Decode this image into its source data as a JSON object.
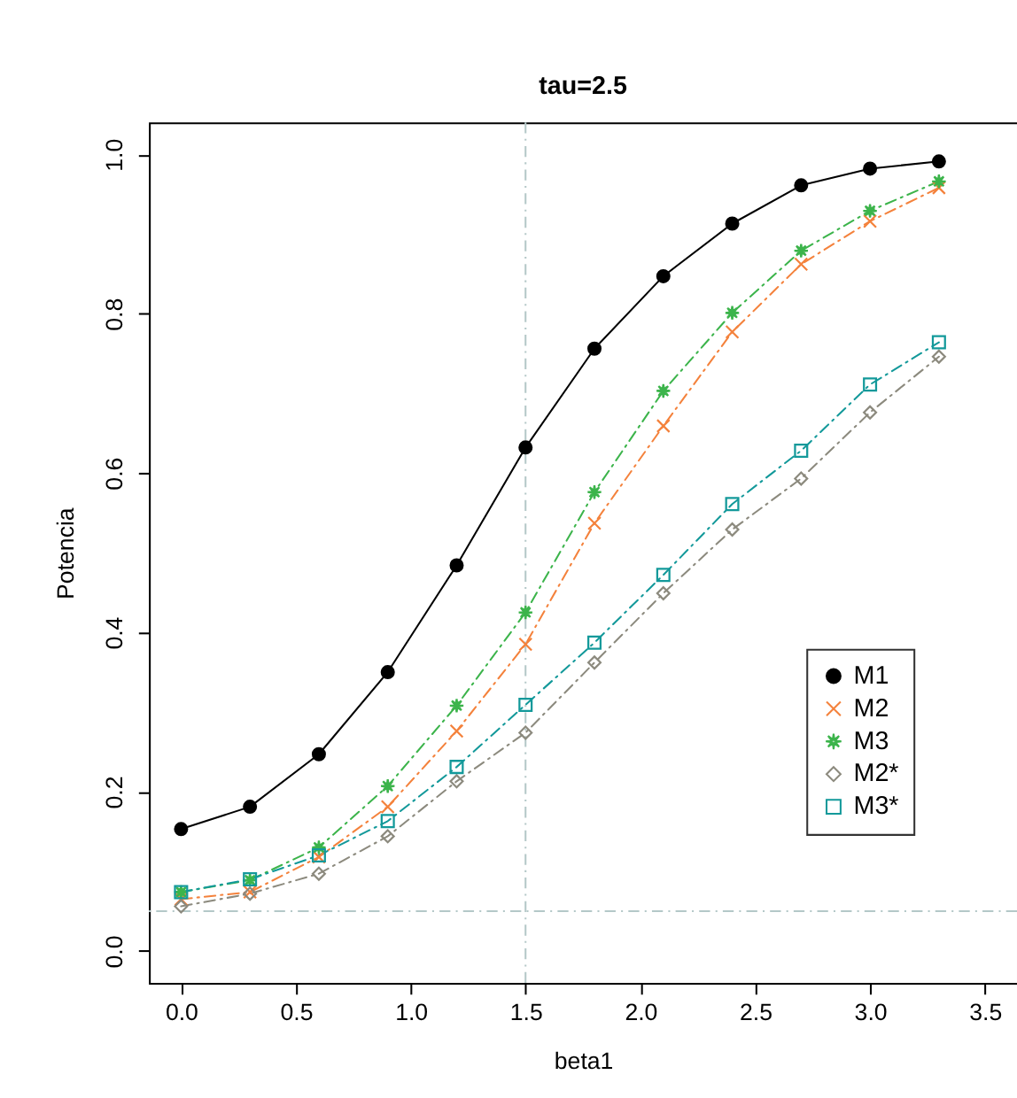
{
  "chart_data": {
    "type": "line",
    "title": "tau=2.5",
    "xlabel": "beta1",
    "ylabel": "Potencia",
    "x": [
      0.0,
      0.3,
      0.6,
      0.9,
      1.2,
      1.5,
      1.8,
      2.1,
      2.4,
      2.7,
      3.0,
      3.3
    ],
    "series": [
      {
        "name": "M1",
        "color": "#000000",
        "marker": "circle",
        "line_style": "solid",
        "values": [
          0.153,
          0.181,
          0.247,
          0.35,
          0.484,
          0.632,
          0.756,
          0.847,
          0.913,
          0.961,
          0.982,
          0.991
        ]
      },
      {
        "name": "M2",
        "color": "#f4823c",
        "marker": "cross",
        "line_style": "dashed",
        "values": [
          0.065,
          0.074,
          0.118,
          0.181,
          0.276,
          0.385,
          0.537,
          0.659,
          0.777,
          0.862,
          0.916,
          0.958
        ]
      },
      {
        "name": "M3",
        "color": "#3cb44b",
        "marker": "star",
        "line_style": "dashed",
        "values": [
          0.074,
          0.089,
          0.13,
          0.207,
          0.308,
          0.425,
          0.576,
          0.703,
          0.801,
          0.879,
          0.929,
          0.966
        ]
      },
      {
        "name": "M2*",
        "color": "#8c8a7e",
        "marker": "diamond",
        "line_style": "dashed",
        "values": [
          0.056,
          0.072,
          0.097,
          0.144,
          0.213,
          0.274,
          0.362,
          0.449,
          0.529,
          0.593,
          0.676,
          0.746
        ]
      },
      {
        "name": "M3*",
        "color": "#13999a",
        "marker": "square",
        "line_style": "dashed",
        "values": [
          0.074,
          0.09,
          0.12,
          0.163,
          0.231,
          0.309,
          0.387,
          0.472,
          0.561,
          0.628,
          0.711,
          0.764
        ]
      }
    ],
    "xlim": [
      -0.14,
      3.64
    ],
    "xticks": [
      {
        "value": 0,
        "label": "0.0"
      },
      0.5,
      {
        "value": 1,
        "label": "1.0"
      },
      1.5,
      {
        "value": 2,
        "label": "2.0"
      },
      2.5,
      {
        "value": 3,
        "label": "3.0"
      },
      3.5
    ],
    "ylim": [
      -0.04,
      1.04
    ],
    "yticks": [
      {
        "value": 0,
        "label": "0.0"
      },
      0.2,
      0.4,
      0.6,
      0.8,
      {
        "value": 1,
        "label": "1.0"
      }
    ],
    "ref_lines": [
      {
        "axis": "y",
        "value": 0.05,
        "color": "#b4c8c8",
        "line_style": "dashed"
      },
      {
        "axis": "x",
        "value": 1.5,
        "color": "#b4c8c8",
        "line_style": "dashed"
      }
    ],
    "grid": false,
    "legend": "right"
  }
}
